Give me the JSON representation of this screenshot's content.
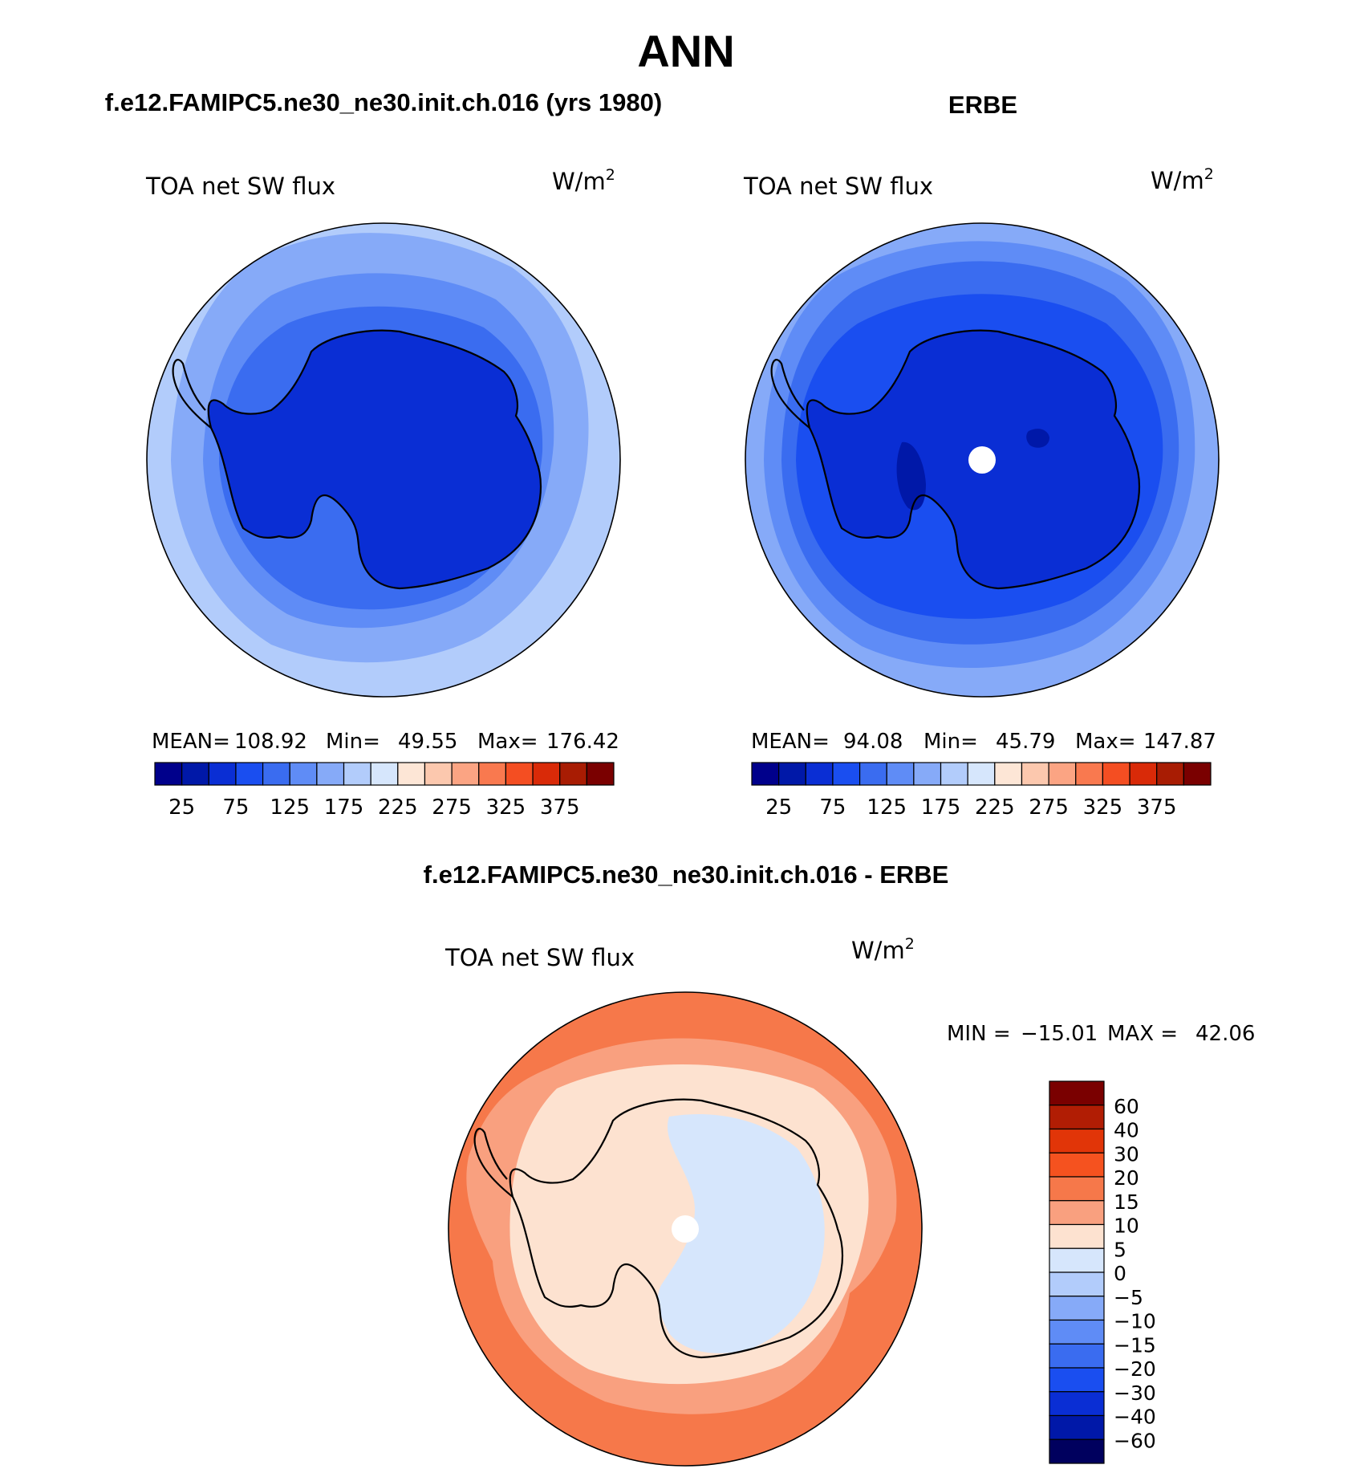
{
  "figure": {
    "main_title": "ANN",
    "panel_titles": [
      "f.e12.FAMIPC5.ne30_ne30.init.ch.016 (yrs 1980)",
      "ERBE",
      "f.e12.FAMIPC5.ne30_ne30.init.ch.016 - ERBE"
    ]
  },
  "chart_data": [
    {
      "type": "heatmap",
      "subtype": "polar-stereographic contour map (south pole)",
      "title": "f.e12.FAMIPC5.ne30_ne30.init.ch.016 (yrs 1980)",
      "variable": "TOA net SW flux",
      "units_base": "W/m",
      "units_exp": "2",
      "stats": {
        "mean_label": "MEAN=",
        "mean": "108.92",
        "min_label": "Min=",
        "min": "49.55",
        "max_label": "Max=",
        "max": "176.42"
      },
      "levels": [
        25,
        50,
        75,
        100,
        125,
        150,
        175,
        200,
        225,
        250,
        275,
        300,
        325,
        350,
        375
      ],
      "tick_labels": [
        "25",
        "75",
        "125",
        "175",
        "225",
        "275",
        "325",
        "375"
      ],
      "colors": [
        "#00008b",
        "#0018a8",
        "#0a2ed4",
        "#1a4ef0",
        "#3a6cf0",
        "#5f8cf6",
        "#86aaf8",
        "#b2ccfb",
        "#d6e6fc",
        "#fde6d6",
        "#fcc8ae",
        "#fba483",
        "#f9794f",
        "#f44e22",
        "#d92a08",
        "#a81c03",
        "#7a0000"
      ],
      "bands": [
        {
          "level": 150,
          "color": "#b2ccfb"
        },
        {
          "level": 125,
          "color": "#86aaf8"
        },
        {
          "level": 100,
          "color": "#5f8cf6"
        },
        {
          "level": 75,
          "color": "#3a6cf0"
        },
        {
          "level": 50,
          "color": "#0a2ed4"
        }
      ]
    },
    {
      "type": "heatmap",
      "subtype": "polar-stereographic contour map (south pole)",
      "title": "ERBE",
      "variable": "TOA net SW flux",
      "units_base": "W/m",
      "units_exp": "2",
      "stats": {
        "mean_label": "MEAN=",
        "mean": "94.08",
        "min_label": "Min=",
        "min": "45.79",
        "max_label": "Max=",
        "max": "147.87"
      },
      "levels": [
        25,
        50,
        75,
        100,
        125,
        150,
        175,
        200,
        225,
        250,
        275,
        300,
        325,
        350,
        375
      ],
      "tick_labels": [
        "25",
        "75",
        "125",
        "175",
        "225",
        "275",
        "325",
        "375"
      ],
      "bands": [
        {
          "level": 125,
          "color": "#86aaf8"
        },
        {
          "level": 100,
          "color": "#5f8cf6"
        },
        {
          "level": 75,
          "color": "#3a6cf0"
        },
        {
          "level": 50,
          "color": "#1a4ef0"
        },
        {
          "level": 25,
          "color": "#0a2ed4"
        }
      ]
    },
    {
      "type": "heatmap",
      "subtype": "polar-stereographic contour map difference (south pole)",
      "title": "f.e12.FAMIPC5.ne30_ne30.init.ch.016 - ERBE",
      "variable": "TOA net SW flux",
      "units_base": "W/m",
      "units_exp": "2",
      "stats": {
        "min_label": "MIN =",
        "min": "−15.01",
        "max_label": "MAX =",
        "max": "42.06"
      },
      "levels": [
        -60,
        -40,
        -30,
        -20,
        -15,
        -10,
        -5,
        0,
        5,
        10,
        15,
        20,
        30,
        40,
        60
      ],
      "tick_labels": [
        "60",
        "40",
        "30",
        "20",
        "15",
        "10",
        "5",
        "0",
        "−5",
        "−10",
        "−15",
        "−20",
        "−30",
        "−40",
        "−60"
      ],
      "colors": [
        "#7a0000",
        "#b11d04",
        "#e13508",
        "#f5521f",
        "#f6784a",
        "#f9a07f",
        "#fde2d0",
        "#d6e6fc",
        "#b2ccfb",
        "#86aaf8",
        "#5f8cf6",
        "#3a6cf0",
        "#1a4ef0",
        "#0a2ed4",
        "#0018a8",
        "#00005e"
      ],
      "bands": [
        {
          "level": 20,
          "color": "#f6784a"
        },
        {
          "level": 15,
          "color": "#f9a07f"
        },
        {
          "level": 5,
          "color": "#fde2d0"
        },
        {
          "level": -5,
          "color": "#d6e6fc"
        }
      ]
    }
  ]
}
